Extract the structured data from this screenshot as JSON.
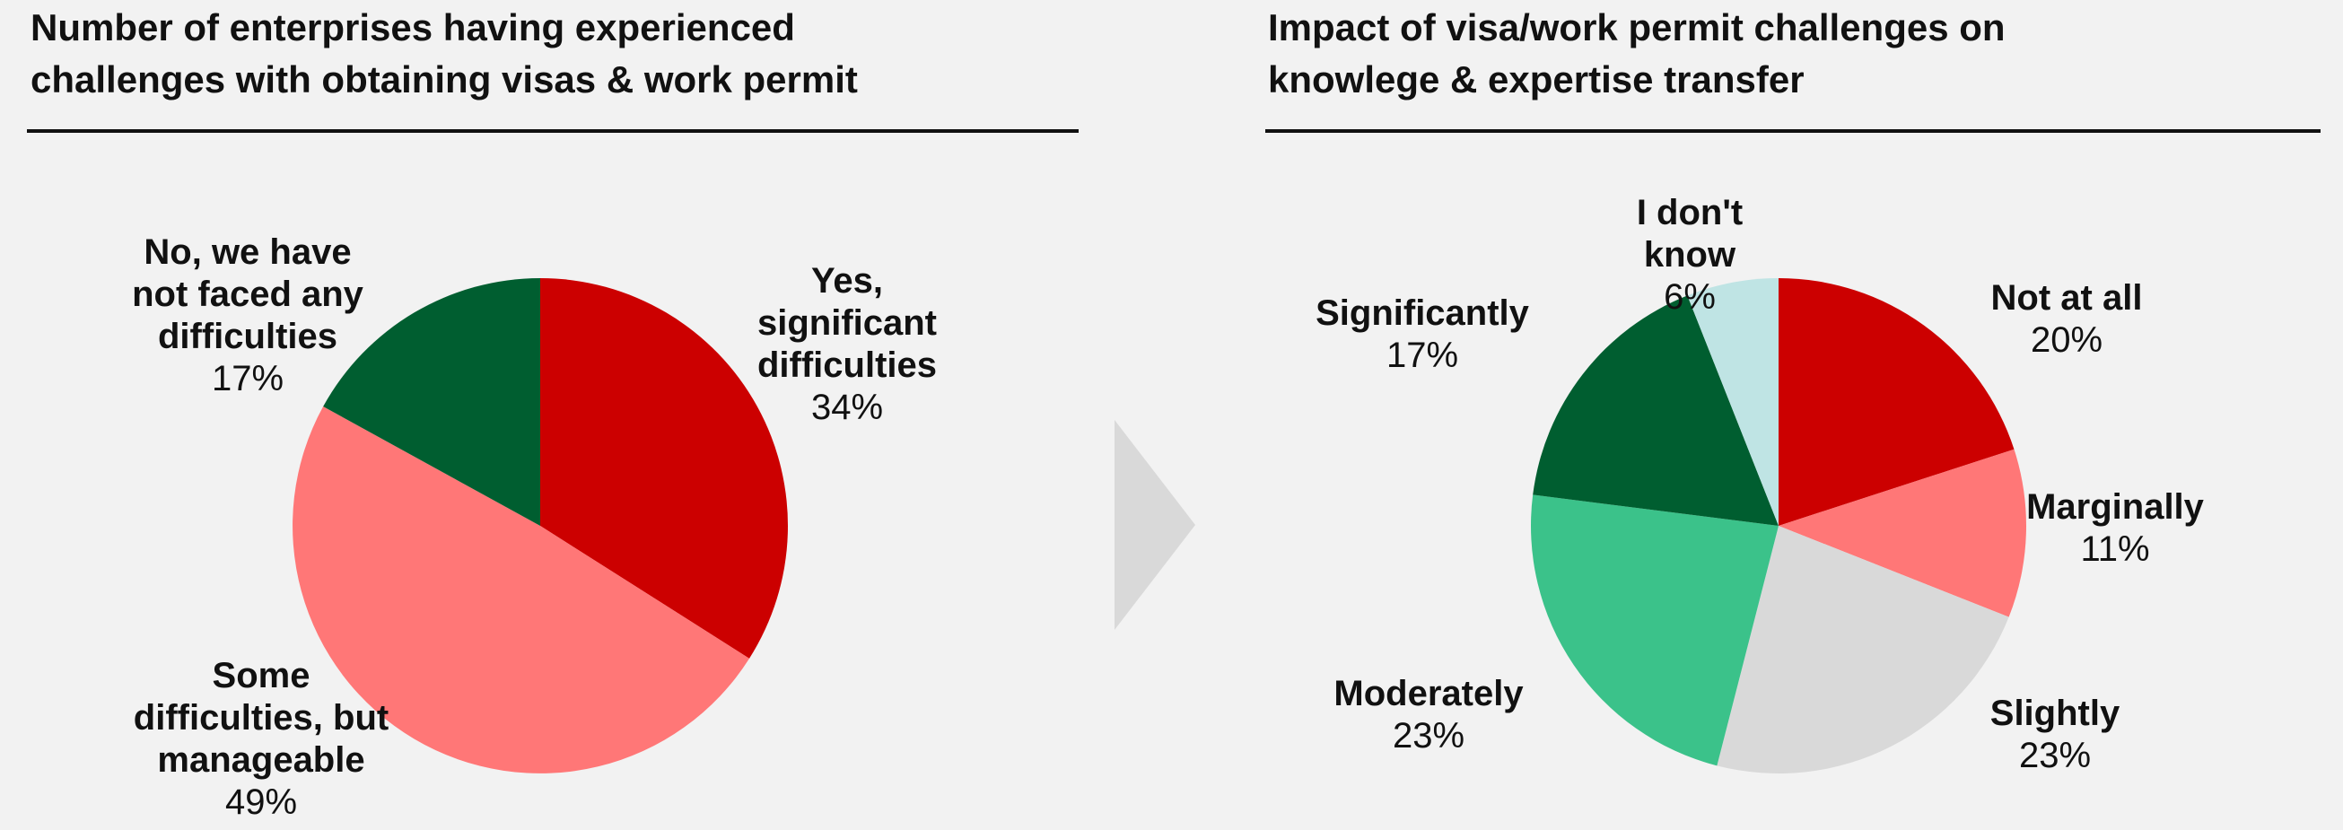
{
  "panels": {
    "left_title": "Number of enterprises having experienced\nchallenges with obtaining visas & work permit",
    "right_title": "Impact of visa/work permit challenges on\nknowlege & expertise transfer"
  },
  "colors": {
    "background": "#f2f2f2",
    "arrow": "#d9d9d9",
    "rule": "#111111"
  },
  "chart_data": [
    {
      "type": "pie",
      "title": "Number of enterprises having experienced challenges with obtaining visas & work permit",
      "start": "top, clockwise",
      "slices": [
        {
          "label": "Yes, significant difficulties",
          "label_lines": [
            "Yes,",
            "significant",
            "difficulties"
          ],
          "value": 34,
          "display": "34%",
          "color": "#cc0000"
        },
        {
          "label": "Some difficulties, but manageable",
          "label_lines": [
            "Some",
            "difficulties, but",
            "manageable"
          ],
          "value": 49,
          "display": "49%",
          "color": "#ff7777"
        },
        {
          "label": "No, we have not faced any difficulties",
          "label_lines": [
            "No, we have",
            "not faced any",
            "difficulties"
          ],
          "value": 17,
          "display": "17%",
          "color": "#005e30"
        }
      ]
    },
    {
      "type": "pie",
      "title": "Impact of visa/work permit challenges on knowlege & expertise transfer",
      "start": "top, clockwise",
      "slices": [
        {
          "label": "Not at all",
          "label_lines": [
            "Not at all"
          ],
          "value": 20,
          "display": "20%",
          "color": "#cc0000"
        },
        {
          "label": "Marginally",
          "label_lines": [
            "Marginally"
          ],
          "value": 11,
          "display": "11%",
          "color": "#ff7777"
        },
        {
          "label": "Slightly",
          "label_lines": [
            "Slightly"
          ],
          "value": 23,
          "display": "23%",
          "color": "#d9d9d9"
        },
        {
          "label": "Moderately",
          "label_lines": [
            "Moderately"
          ],
          "value": 23,
          "display": "23%",
          "color": "#3bc28a"
        },
        {
          "label": "Significantly",
          "label_lines": [
            "Significantly"
          ],
          "value": 17,
          "display": "17%",
          "color": "#005e30"
        },
        {
          "label": "I don't know",
          "label_lines": [
            "I don't",
            "know"
          ],
          "value": 6,
          "display": "6%",
          "color": "#bfe4e4"
        }
      ]
    }
  ]
}
